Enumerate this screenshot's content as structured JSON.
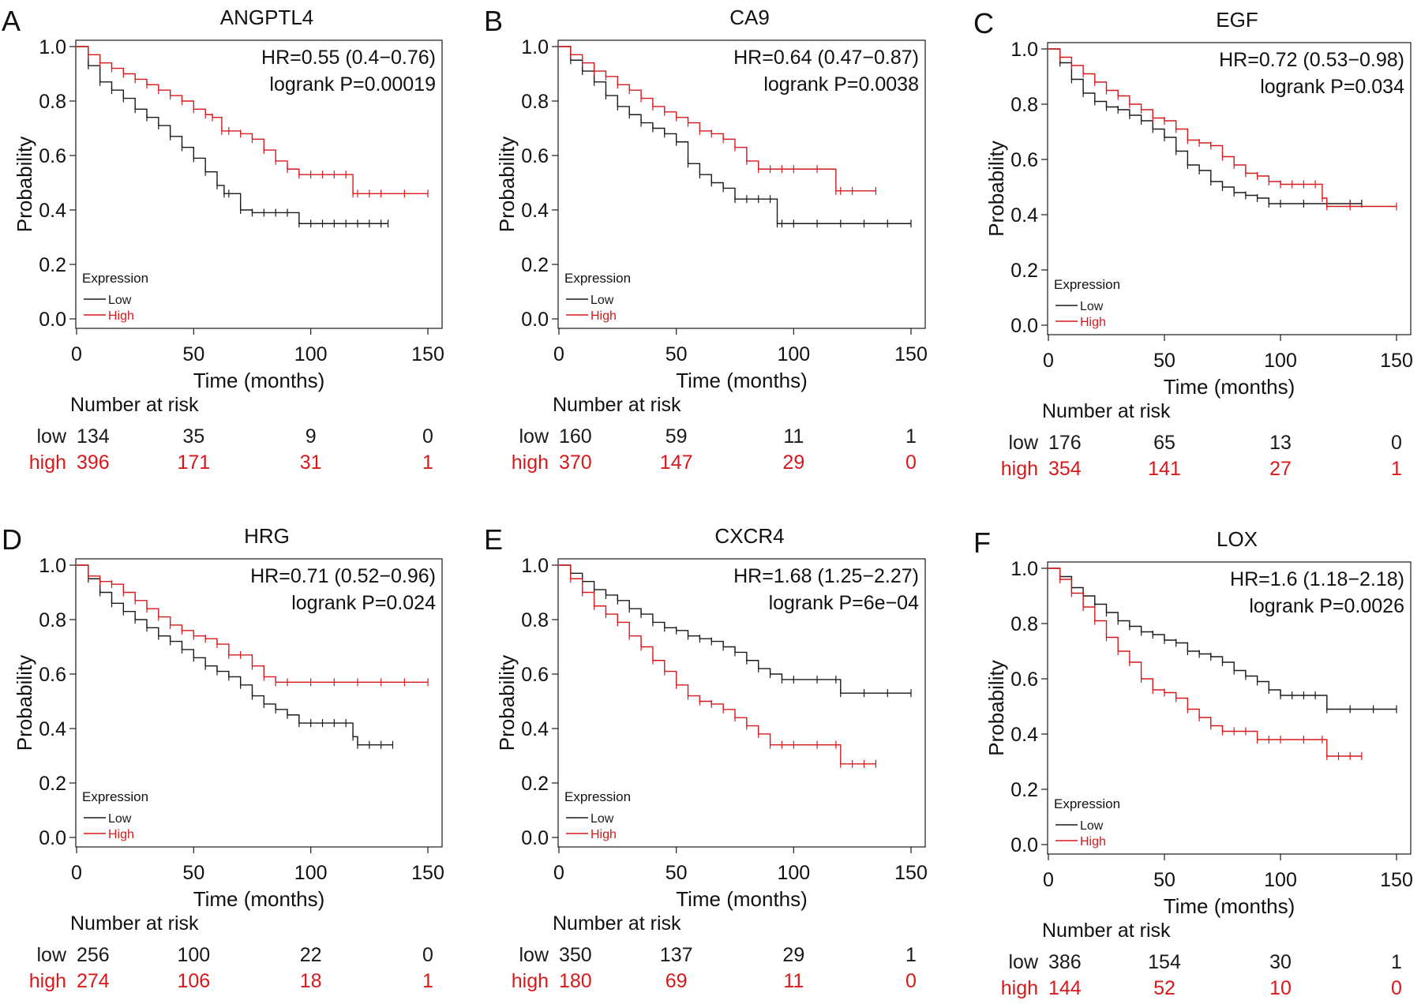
{
  "colors": {
    "low": "#1a1a1a",
    "high": "#d7191c",
    "axis": "#1a1a1a"
  },
  "chart_data": [
    {
      "type": "line",
      "panel_letter": "A",
      "title": "ANGPTL4",
      "xlabel": "Time (months)",
      "ylabel": "Probability",
      "xlim": [
        0,
        150
      ],
      "ylim": [
        0,
        1
      ],
      "xticks": [
        "0",
        "50",
        "100",
        "150"
      ],
      "yticks": [
        "0.0",
        "0.2",
        "0.4",
        "0.6",
        "0.8",
        "1.0"
      ],
      "stats": {
        "hr": "HR=0.55 (0.4−0.76)",
        "logrank": "logrank P=0.00019"
      },
      "legend": {
        "title": "Expression",
        "entries": [
          "Low",
          "High"
        ],
        "position": "bottom-left"
      },
      "series": [
        {
          "name": "Low",
          "x": [
            0,
            5,
            10,
            15,
            20,
            25,
            30,
            35,
            40,
            45,
            50,
            55,
            60,
            63,
            65,
            70,
            75,
            80,
            85,
            90,
            95,
            100,
            105,
            110,
            115,
            120,
            125,
            130,
            133
          ],
          "y": [
            1.0,
            0.93,
            0.87,
            0.84,
            0.81,
            0.77,
            0.74,
            0.71,
            0.67,
            0.63,
            0.59,
            0.54,
            0.49,
            0.46,
            0.46,
            0.4,
            0.39,
            0.39,
            0.39,
            0.39,
            0.35,
            0.35,
            0.35,
            0.35,
            0.35,
            0.35,
            0.35,
            0.35,
            0.35
          ]
        },
        {
          "name": "High",
          "x": [
            0,
            5,
            10,
            15,
            20,
            25,
            30,
            35,
            40,
            45,
            50,
            55,
            58,
            62,
            65,
            70,
            75,
            80,
            85,
            90,
            95,
            100,
            105,
            110,
            115,
            118,
            120,
            125,
            130,
            140,
            150
          ],
          "y": [
            1.0,
            0.97,
            0.94,
            0.92,
            0.9,
            0.88,
            0.86,
            0.84,
            0.82,
            0.8,
            0.77,
            0.75,
            0.74,
            0.69,
            0.69,
            0.68,
            0.66,
            0.62,
            0.58,
            0.55,
            0.53,
            0.53,
            0.53,
            0.53,
            0.53,
            0.46,
            0.46,
            0.46,
            0.46,
            0.46,
            0.46
          ]
        }
      ],
      "risk_table": {
        "heading": "Number at risk",
        "rows": [
          {
            "label": "low",
            "values": [
              "134",
              "35",
              "9",
              "0"
            ]
          },
          {
            "label": "high",
            "values": [
              "396",
              "171",
              "31",
              "1"
            ]
          }
        ]
      }
    },
    {
      "type": "line",
      "panel_letter": "B",
      "title": "CA9",
      "xlabel": "Time (months)",
      "ylabel": "Probability",
      "xlim": [
        0,
        150
      ],
      "ylim": [
        0,
        1
      ],
      "xticks": [
        "0",
        "50",
        "100",
        "150"
      ],
      "yticks": [
        "0.0",
        "0.2",
        "0.4",
        "0.6",
        "0.8",
        "1.0"
      ],
      "stats": {
        "hr": "HR=0.64 (0.47−0.87)",
        "logrank": "logrank P=0.0038"
      },
      "legend": {
        "title": "Expression",
        "entries": [
          "Low",
          "High"
        ],
        "position": "bottom-left"
      },
      "series": [
        {
          "name": "Low",
          "x": [
            0,
            5,
            10,
            15,
            20,
            25,
            30,
            35,
            40,
            45,
            50,
            55,
            60,
            65,
            70,
            75,
            80,
            85,
            90,
            93,
            95,
            100,
            110,
            120,
            130,
            140,
            150
          ],
          "y": [
            1.0,
            0.95,
            0.91,
            0.87,
            0.82,
            0.78,
            0.75,
            0.72,
            0.7,
            0.68,
            0.65,
            0.57,
            0.53,
            0.5,
            0.48,
            0.44,
            0.44,
            0.44,
            0.44,
            0.35,
            0.35,
            0.35,
            0.35,
            0.35,
            0.35,
            0.35,
            0.35
          ]
        },
        {
          "name": "High",
          "x": [
            0,
            5,
            10,
            15,
            20,
            25,
            30,
            35,
            40,
            45,
            50,
            55,
            60,
            65,
            70,
            75,
            80,
            85,
            90,
            95,
            100,
            110,
            118,
            120,
            125,
            135
          ],
          "y": [
            1.0,
            0.97,
            0.94,
            0.91,
            0.89,
            0.86,
            0.84,
            0.81,
            0.78,
            0.76,
            0.74,
            0.72,
            0.69,
            0.68,
            0.66,
            0.63,
            0.58,
            0.55,
            0.55,
            0.55,
            0.55,
            0.55,
            0.47,
            0.47,
            0.47,
            0.47
          ]
        }
      ],
      "risk_table": {
        "heading": "Number at risk",
        "rows": [
          {
            "label": "low",
            "values": [
              "160",
              "59",
              "11",
              "1"
            ]
          },
          {
            "label": "high",
            "values": [
              "370",
              "147",
              "29",
              "0"
            ]
          }
        ]
      }
    },
    {
      "type": "line",
      "panel_letter": "C",
      "title": "EGF",
      "xlabel": "Time (months)",
      "ylabel": "Probability",
      "xlim": [
        0,
        150
      ],
      "ylim": [
        0,
        1
      ],
      "xticks": [
        "0",
        "50",
        "100",
        "150"
      ],
      "yticks": [
        "0.0",
        "0.2",
        "0.4",
        "0.6",
        "0.8",
        "1.0"
      ],
      "stats": {
        "hr": "HR=0.72 (0.53−0.98)",
        "logrank": "logrank P=0.034"
      },
      "legend": {
        "title": "Expression",
        "entries": [
          "Low",
          "High"
        ],
        "position": "bottom-left"
      },
      "series": [
        {
          "name": "Low",
          "x": [
            0,
            5,
            10,
            15,
            20,
            25,
            30,
            35,
            40,
            45,
            50,
            55,
            60,
            65,
            70,
            75,
            80,
            85,
            90,
            95,
            100,
            110,
            120,
            130,
            135
          ],
          "y": [
            1.0,
            0.95,
            0.89,
            0.84,
            0.81,
            0.79,
            0.78,
            0.76,
            0.74,
            0.71,
            0.68,
            0.63,
            0.58,
            0.56,
            0.52,
            0.5,
            0.48,
            0.47,
            0.46,
            0.44,
            0.44,
            0.44,
            0.44,
            0.44,
            0.44
          ]
        },
        {
          "name": "High",
          "x": [
            0,
            5,
            10,
            15,
            20,
            25,
            30,
            35,
            40,
            45,
            50,
            55,
            60,
            65,
            70,
            75,
            80,
            85,
            90,
            95,
            100,
            105,
            110,
            115,
            118,
            120,
            130,
            150
          ],
          "y": [
            1.0,
            0.97,
            0.94,
            0.91,
            0.88,
            0.85,
            0.83,
            0.8,
            0.78,
            0.75,
            0.74,
            0.71,
            0.67,
            0.66,
            0.65,
            0.61,
            0.58,
            0.55,
            0.54,
            0.52,
            0.51,
            0.51,
            0.51,
            0.51,
            0.46,
            0.43,
            0.43,
            0.43
          ]
        }
      ],
      "risk_table": {
        "heading": "Number at risk",
        "rows": [
          {
            "label": "low",
            "values": [
              "176",
              "65",
              "13",
              "0"
            ]
          },
          {
            "label": "high",
            "values": [
              "354",
              "141",
              "27",
              "1"
            ]
          }
        ]
      }
    },
    {
      "type": "line",
      "panel_letter": "D",
      "title": "HRG",
      "xlabel": "Time (months)",
      "ylabel": "Probability",
      "xlim": [
        0,
        150
      ],
      "ylim": [
        0,
        1
      ],
      "xticks": [
        "0",
        "50",
        "100",
        "150"
      ],
      "yticks": [
        "0.0",
        "0.2",
        "0.4",
        "0.6",
        "0.8",
        "1.0"
      ],
      "stats": {
        "hr": "HR=0.71 (0.52−0.96)",
        "logrank": "logrank P=0.024"
      },
      "legend": {
        "title": "Expression",
        "entries": [
          "Low",
          "High"
        ],
        "position": "bottom-left"
      },
      "series": [
        {
          "name": "Low",
          "x": [
            0,
            5,
            10,
            15,
            20,
            25,
            30,
            35,
            40,
            45,
            50,
            55,
            60,
            65,
            70,
            75,
            80,
            85,
            90,
            95,
            100,
            105,
            110,
            115,
            118,
            120,
            125,
            130,
            135
          ],
          "y": [
            1.0,
            0.95,
            0.9,
            0.86,
            0.83,
            0.8,
            0.77,
            0.74,
            0.72,
            0.69,
            0.66,
            0.63,
            0.61,
            0.59,
            0.56,
            0.52,
            0.49,
            0.47,
            0.45,
            0.42,
            0.42,
            0.42,
            0.42,
            0.42,
            0.37,
            0.34,
            0.34,
            0.34,
            0.34
          ]
        },
        {
          "name": "High",
          "x": [
            0,
            5,
            10,
            15,
            20,
            25,
            30,
            35,
            40,
            45,
            50,
            55,
            60,
            65,
            70,
            75,
            80,
            85,
            90,
            100,
            110,
            120,
            130,
            140,
            150
          ],
          "y": [
            1.0,
            0.96,
            0.94,
            0.93,
            0.9,
            0.87,
            0.84,
            0.81,
            0.78,
            0.76,
            0.74,
            0.73,
            0.71,
            0.67,
            0.67,
            0.63,
            0.59,
            0.57,
            0.57,
            0.57,
            0.57,
            0.57,
            0.57,
            0.57,
            0.57
          ]
        }
      ],
      "risk_table": {
        "heading": "Number at risk",
        "rows": [
          {
            "label": "low",
            "values": [
              "256",
              "100",
              "22",
              "0"
            ]
          },
          {
            "label": "high",
            "values": [
              "274",
              "106",
              "18",
              "1"
            ]
          }
        ]
      }
    },
    {
      "type": "line",
      "panel_letter": "E",
      "title": "CXCR4",
      "xlabel": "Time (months)",
      "ylabel": "Probability",
      "xlim": [
        0,
        150
      ],
      "ylim": [
        0,
        1
      ],
      "xticks": [
        "0",
        "50",
        "100",
        "150"
      ],
      "yticks": [
        "0.0",
        "0.2",
        "0.4",
        "0.6",
        "0.8",
        "1.0"
      ],
      "stats": {
        "hr": "HR=1.68 (1.25−2.27)",
        "logrank": "logrank P=6e−04"
      },
      "legend": {
        "title": "Expression",
        "entries": [
          "Low",
          "High"
        ],
        "position": "bottom-left"
      },
      "series": [
        {
          "name": "Low",
          "x": [
            0,
            5,
            10,
            15,
            20,
            25,
            30,
            35,
            40,
            45,
            50,
            55,
            60,
            65,
            70,
            75,
            80,
            85,
            90,
            95,
            100,
            110,
            118,
            120,
            130,
            140,
            150
          ],
          "y": [
            1.0,
            0.97,
            0.94,
            0.91,
            0.89,
            0.87,
            0.84,
            0.82,
            0.79,
            0.77,
            0.76,
            0.74,
            0.73,
            0.72,
            0.7,
            0.68,
            0.65,
            0.62,
            0.6,
            0.58,
            0.58,
            0.58,
            0.58,
            0.53,
            0.53,
            0.53,
            0.53
          ]
        },
        {
          "name": "High",
          "x": [
            0,
            5,
            10,
            15,
            20,
            25,
            30,
            35,
            40,
            45,
            50,
            55,
            60,
            65,
            70,
            75,
            80,
            85,
            90,
            95,
            100,
            110,
            118,
            120,
            125,
            130,
            135
          ],
          "y": [
            1.0,
            0.95,
            0.9,
            0.85,
            0.82,
            0.79,
            0.74,
            0.7,
            0.65,
            0.61,
            0.56,
            0.52,
            0.5,
            0.49,
            0.47,
            0.44,
            0.41,
            0.38,
            0.34,
            0.34,
            0.34,
            0.34,
            0.34,
            0.27,
            0.27,
            0.27,
            0.27
          ]
        }
      ],
      "risk_table": {
        "heading": "Number at risk",
        "rows": [
          {
            "label": "low",
            "values": [
              "350",
              "137",
              "29",
              "1"
            ]
          },
          {
            "label": "high",
            "values": [
              "180",
              "69",
              "11",
              "0"
            ]
          }
        ]
      }
    },
    {
      "type": "line",
      "panel_letter": "F",
      "title": "LOX",
      "xlabel": "Time (months)",
      "ylabel": "Probability",
      "xlim": [
        0,
        150
      ],
      "ylim": [
        0,
        1
      ],
      "xticks": [
        "0",
        "50",
        "100",
        "150"
      ],
      "yticks": [
        "0.0",
        "0.2",
        "0.4",
        "0.6",
        "0.8",
        "1.0"
      ],
      "stats": {
        "hr": "HR=1.6 (1.18−2.18)",
        "logrank": "logrank P=0.0026"
      },
      "legend": {
        "title": "Expression",
        "entries": [
          "Low",
          "High"
        ],
        "position": "bottom-left"
      },
      "series": [
        {
          "name": "Low",
          "x": [
            0,
            5,
            10,
            15,
            20,
            25,
            30,
            35,
            40,
            45,
            50,
            55,
            60,
            65,
            70,
            75,
            80,
            85,
            90,
            95,
            100,
            105,
            110,
            115,
            120,
            130,
            140,
            150
          ],
          "y": [
            1.0,
            0.97,
            0.93,
            0.9,
            0.87,
            0.84,
            0.81,
            0.79,
            0.77,
            0.76,
            0.74,
            0.73,
            0.7,
            0.69,
            0.68,
            0.66,
            0.63,
            0.61,
            0.59,
            0.56,
            0.54,
            0.54,
            0.54,
            0.54,
            0.49,
            0.49,
            0.49,
            0.49
          ]
        },
        {
          "name": "High",
          "x": [
            0,
            5,
            10,
            15,
            20,
            25,
            30,
            35,
            40,
            45,
            50,
            55,
            60,
            65,
            70,
            75,
            80,
            85,
            90,
            95,
            100,
            110,
            118,
            120,
            125,
            130,
            135
          ],
          "y": [
            1.0,
            0.96,
            0.91,
            0.86,
            0.81,
            0.75,
            0.7,
            0.66,
            0.6,
            0.56,
            0.55,
            0.53,
            0.49,
            0.46,
            0.43,
            0.41,
            0.41,
            0.41,
            0.38,
            0.38,
            0.38,
            0.38,
            0.38,
            0.32,
            0.32,
            0.32,
            0.32
          ]
        }
      ],
      "risk_table": {
        "heading": "Number at risk",
        "rows": [
          {
            "label": "low",
            "values": [
              "386",
              "154",
              "30",
              "1"
            ]
          },
          {
            "label": "high",
            "values": [
              "144",
              "52",
              "10",
              "0"
            ]
          }
        ]
      }
    }
  ]
}
